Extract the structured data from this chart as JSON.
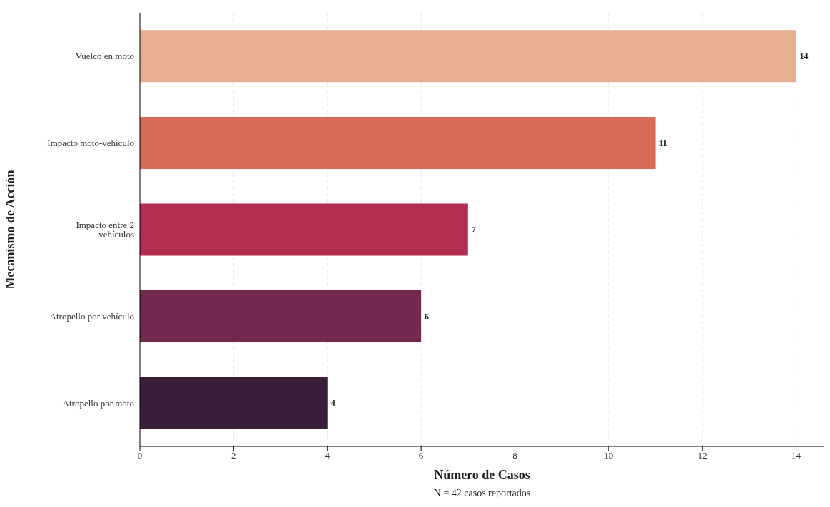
{
  "chart_data": {
    "type": "bar",
    "orientation": "horizontal",
    "xlabel": "Número de Casos",
    "ylabel": "Mecanismo de Acción",
    "categories": [
      "Vuelco en moto",
      "Impacto moto-vehículo",
      "Impacto entre 2 vehículos",
      "Atropello por vehículo",
      "Atropello por moto"
    ],
    "values": [
      14,
      11,
      7,
      6,
      4
    ],
    "colors": [
      "#e6af91",
      "#d66d58",
      "#b32d53",
      "#73284f",
      "#381e38"
    ],
    "xlim": [
      0,
      14.6
    ],
    "xticks": [
      0,
      2,
      4,
      6,
      8,
      10,
      12,
      14
    ],
    "grid": "x",
    "data_labels": true,
    "annotations": [
      "N = 42 casos reportados"
    ]
  }
}
